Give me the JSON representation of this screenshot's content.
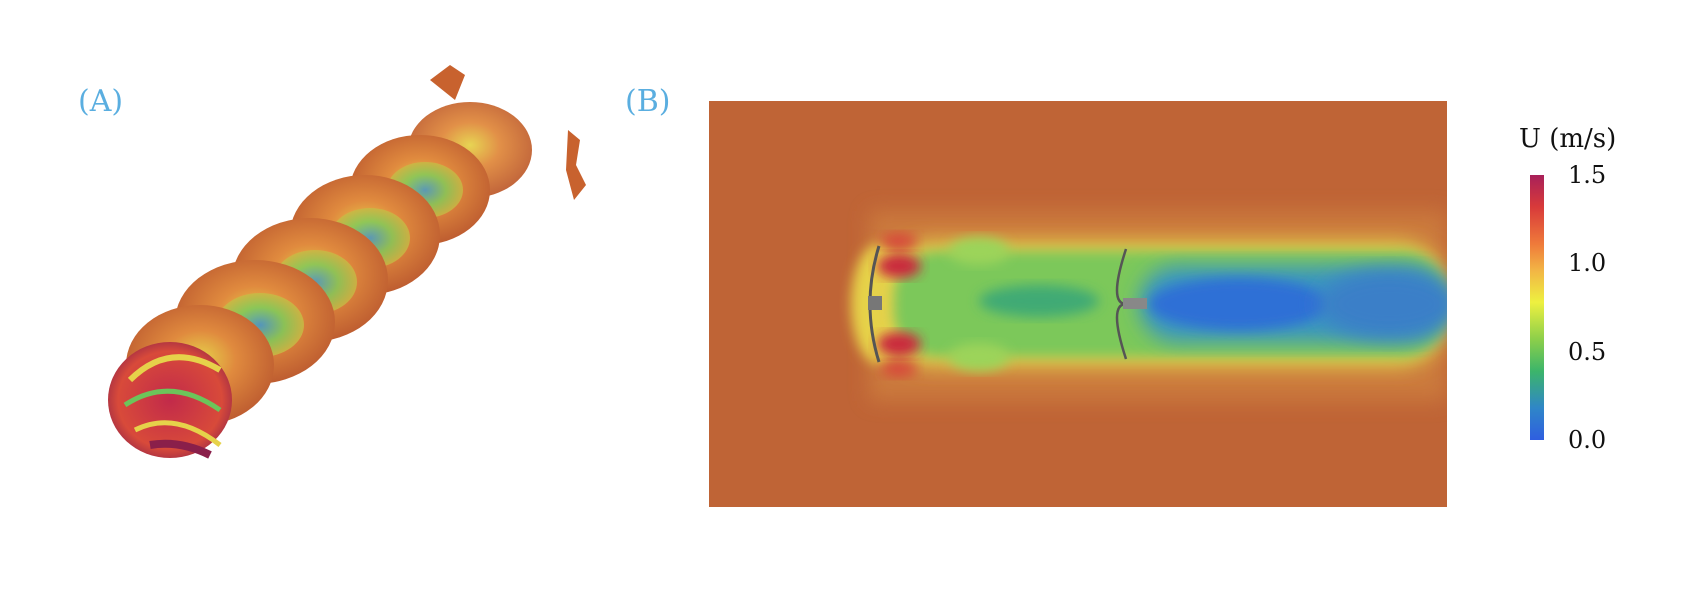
{
  "panels": {
    "a": {
      "label": "(A)"
    },
    "b": {
      "label": "(B)"
    }
  },
  "colorbar": {
    "symbol": "U",
    "unit": "(m/s)",
    "ticks": [
      "1.5",
      "1.0",
      "0.5",
      "0.0"
    ],
    "colors": [
      "#a8205a",
      "#d83a3a",
      "#ef7a3a",
      "#f2b545",
      "#eef040",
      "#8ccf4a",
      "#3cb56a",
      "#2f86c8",
      "#2f5ee0"
    ]
  },
  "field_colors": {
    "background": "#bf6436",
    "wake_low": "#2e7fd0",
    "wake_mid": "#62c158",
    "tip_high": "#c9283e"
  }
}
